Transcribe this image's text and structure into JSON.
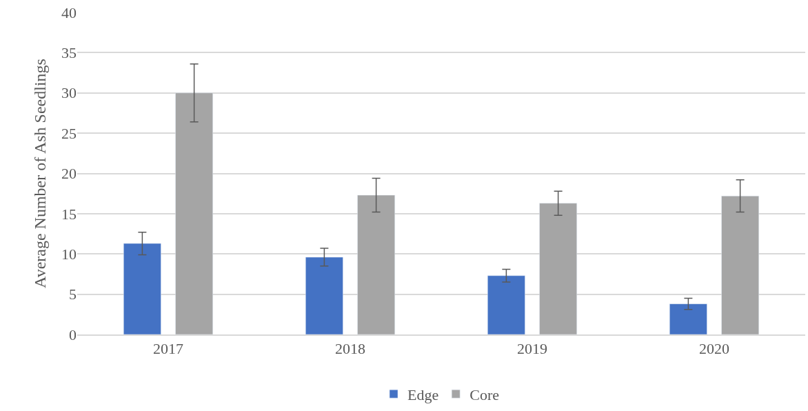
{
  "chart_data": {
    "type": "bar",
    "ylabel": "Average Number of Ash Seedlings",
    "categories": [
      "2017",
      "2018",
      "2019",
      "2020"
    ],
    "series": [
      {
        "name": "Edge",
        "color": "#4472c4",
        "values": [
          11.3,
          9.6,
          7.3,
          3.8
        ],
        "errors": [
          1.4,
          1.1,
          0.8,
          0.7
        ]
      },
      {
        "name": "Core",
        "color": "#a5a5a5",
        "values": [
          30.0,
          17.3,
          16.3,
          17.2
        ],
        "errors": [
          3.6,
          2.1,
          1.5,
          2.0
        ]
      }
    ],
    "ylim": [
      0,
      40
    ],
    "yticks": [
      0,
      5,
      10,
      15,
      20,
      25,
      30,
      35,
      40
    ],
    "grid": "y",
    "legend": "bottom"
  }
}
